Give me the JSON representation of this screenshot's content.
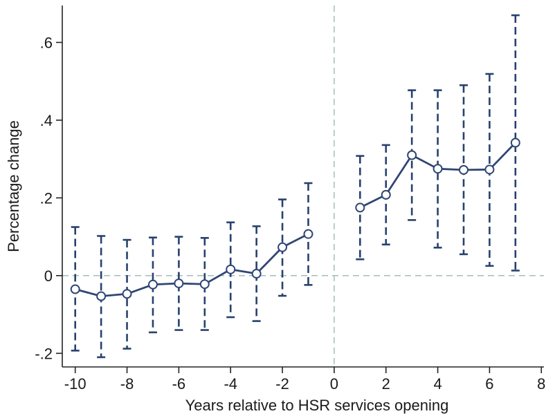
{
  "chart_data": {
    "type": "line",
    "title": "",
    "xlabel": "Years relative to HSR services opening",
    "ylabel": "Percentage change",
    "xlim": [
      -10.5,
      8.1
    ],
    "ylim": [
      -0.235,
      0.695
    ],
    "x_ticks": [
      -10,
      -8,
      -6,
      -4,
      -2,
      0,
      2,
      4,
      6,
      8
    ],
    "x_tick_labels": [
      "-10",
      "-8",
      "-6",
      "-4",
      "-2",
      "0",
      "2",
      "4",
      "6",
      "8"
    ],
    "y_ticks": [
      -0.2,
      0,
      0.2,
      0.4,
      0.6
    ],
    "y_tick_labels": [
      "-.2",
      "0",
      ".2",
      ".4",
      ".6"
    ],
    "reference_lines": {
      "x": 0,
      "y": 0
    },
    "grid": false,
    "legend": "none",
    "series": [
      {
        "segment": "pre",
        "x": [
          -10,
          -9,
          -8,
          -7,
          -6,
          -5,
          -4,
          -3,
          -2,
          -1
        ],
        "y": [
          -0.035,
          -0.053,
          -0.047,
          -0.023,
          -0.02,
          -0.022,
          0.016,
          0.005,
          0.073,
          0.107
        ],
        "ci_lower": [
          -0.193,
          -0.21,
          -0.188,
          -0.146,
          -0.14,
          -0.14,
          -0.107,
          -0.117,
          -0.052,
          -0.024
        ],
        "ci_upper": [
          0.125,
          0.102,
          0.092,
          0.098,
          0.1,
          0.097,
          0.137,
          0.127,
          0.196,
          0.238
        ]
      },
      {
        "segment": "post",
        "x": [
          1,
          2,
          3,
          4,
          5,
          6,
          7
        ],
        "y": [
          0.175,
          0.208,
          0.31,
          0.275,
          0.272,
          0.273,
          0.342
        ],
        "ci_lower": [
          0.042,
          0.08,
          0.143,
          0.072,
          0.055,
          0.025,
          0.013
        ],
        "ci_upper": [
          0.308,
          0.336,
          0.477,
          0.477,
          0.49,
          0.519,
          0.67
        ]
      }
    ],
    "colors": {
      "line": "#2f4674",
      "ci": "#27416e",
      "reference": "#a9c1bf",
      "axis": "#222222"
    }
  }
}
